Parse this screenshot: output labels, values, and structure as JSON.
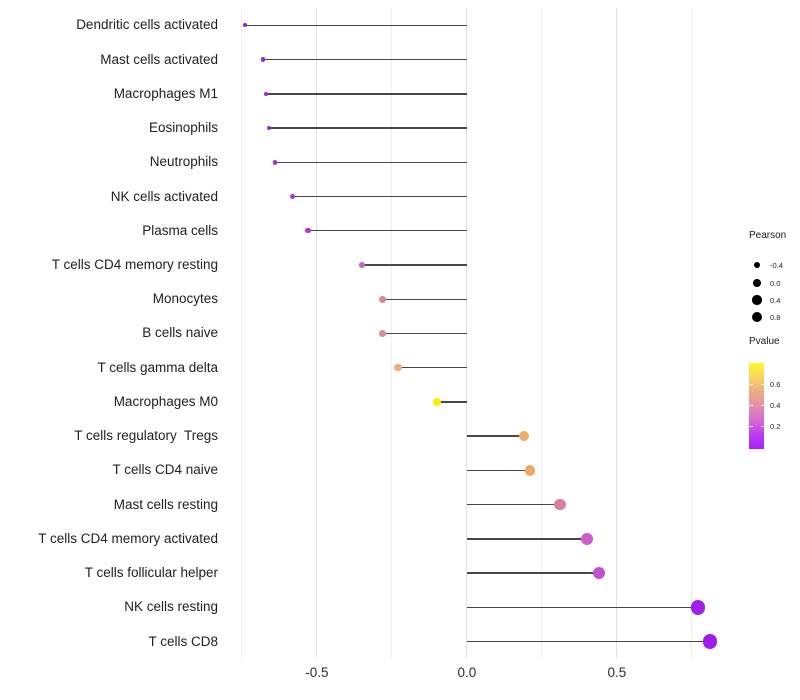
{
  "chart_data": {
    "type": "lollipop",
    "orientation": "horizontal",
    "title": "",
    "xlabel": "",
    "ylabel": "",
    "categories": [
      "Dendritic cells activated",
      "Mast cells activated",
      "Macrophages M1",
      "Eosinophils",
      "Neutrophils",
      "NK cells activated",
      "Plasma cells",
      "T cells CD4 memory resting",
      "Monocytes",
      "B cells naive",
      "T cells gamma delta",
      "Macrophages M0",
      "T cells regulatory  Tregs",
      "T cells CD4 naive",
      "Mast cells resting",
      "T cells CD4 memory activated",
      "T cells follicular helper",
      "NK cells resting",
      "T cells CD8"
    ],
    "series": [
      {
        "name": "Pearson",
        "values": [
          -0.74,
          -0.68,
          -0.67,
          -0.66,
          -0.64,
          -0.58,
          -0.53,
          -0.35,
          -0.28,
          -0.28,
          -0.23,
          -0.1,
          0.19,
          0.21,
          0.31,
          0.4,
          0.44,
          0.77,
          0.81
        ]
      }
    ],
    "point_colors": [
      "#9224D2",
      "#9A2AD8",
      "#9C2CDA",
      "#9C2CDA",
      "#A133DD",
      "#A637E0",
      "#AB35E0",
      "#C863C3",
      "#D98B93",
      "#D98B93",
      "#EFAD7A",
      "#F7F000",
      "#EFAC69",
      "#EEA863",
      "#D8829E",
      "#CB5EC9",
      "#C44FD4",
      "#A21FE8",
      "#9F1BE8"
    ],
    "xlim": [
      -0.763,
      0.837
    ],
    "x_ticks": [
      -0.5,
      0.0,
      0.5
    ],
    "x_tick_labels": [
      "-0.5",
      "0.0",
      "0.5"
    ],
    "grid": {
      "major": [
        -0.5,
        0.0,
        0.5
      ],
      "minor": [
        -0.75,
        -0.25,
        0.25,
        0.75
      ]
    },
    "legend_position": "right",
    "legend_pearson": {
      "title": "Pearson",
      "sizes": [
        -0.4,
        0.0,
        0.4,
        0.8
      ],
      "labels": [
        "-0.4",
        "0.0",
        "0.4",
        "0.8"
      ]
    },
    "legend_pvalue": {
      "title": "Pvalue",
      "tick_labels": [
        "0.6",
        "0.4",
        "0.2"
      ],
      "gradient_top_to_bottom": [
        "#FDFB25",
        "#F6D563",
        "#EFAC85",
        "#E48FAC",
        "#D56BD0",
        "#BC3CF0",
        "#A81FFB"
      ]
    },
    "colors": {
      "stem": "#474747",
      "grid_major": "#E1E1E1",
      "grid_minor": "#EFEFEF",
      "axis_text": "#212121",
      "legend_dot": "#000000",
      "background": "#FFFFFF"
    }
  }
}
